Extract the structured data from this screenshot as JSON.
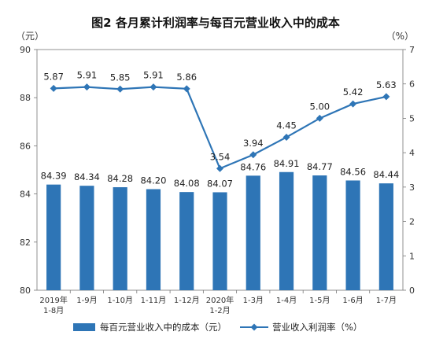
{
  "chart_data": {
    "type": "bar",
    "title": "图2  各月累计利润率与每百元营业收入中的成本",
    "categories": [
      "2019年\n1-8月",
      "1-9月",
      "1-10月",
      "1-11月",
      "1-12月",
      "2020年\n1-2月",
      "1-3月",
      "1-4月",
      "1-5月",
      "1-6月",
      "1-7月"
    ],
    "series": [
      {
        "name": "每百元营业收入中的成本（元）",
        "type": "bar",
        "axis": "left",
        "color": "#2e75b6",
        "values": [
          84.39,
          84.34,
          84.28,
          84.2,
          84.08,
          84.07,
          84.76,
          84.91,
          84.77,
          84.56,
          84.44
        ],
        "labels": [
          "84.39",
          "84.34",
          "84.28",
          "84.20",
          "84.08",
          "84.07",
          "84.76",
          "84.91",
          "84.77",
          "84.56",
          "84.44"
        ]
      },
      {
        "name": "营业收入利润率（%）",
        "type": "line",
        "axis": "right",
        "color": "#2e75b6",
        "marker": "diamond",
        "values": [
          5.87,
          5.91,
          5.85,
          5.91,
          5.86,
          3.54,
          3.94,
          4.45,
          5.0,
          5.42,
          5.63
        ],
        "labels": [
          "5.87",
          "5.91",
          "5.85",
          "5.91",
          "5.86",
          "3.54",
          "3.94",
          "4.45",
          "5.00",
          "5.42",
          "5.63"
        ]
      }
    ],
    "yleft": {
      "unit": "（元）",
      "min": 80,
      "max": 90,
      "ticks": [
        80,
        82,
        84,
        86,
        88,
        90
      ]
    },
    "yright": {
      "unit": "（%）",
      "min": 0,
      "max": 7,
      "ticks": [
        0,
        1,
        2,
        3,
        4,
        5,
        6,
        7
      ]
    },
    "legend_position": "bottom",
    "grid": false
  }
}
